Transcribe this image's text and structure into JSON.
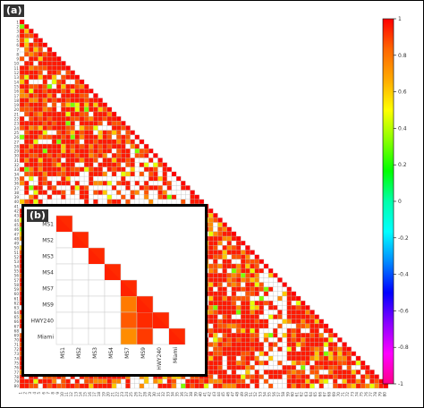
{
  "panels": {
    "a_label": "(a)",
    "b_label": "(b)"
  },
  "chart_data": [
    {
      "type": "heatmap",
      "panel": "(a)",
      "layout": "lower-triangular correlation matrix (diagonal top-left to bottom-right)",
      "categories": [
        "1",
        "2",
        "3",
        "4",
        "5",
        "6",
        "7",
        "8",
        "9",
        "10",
        "11",
        "12",
        "13",
        "14",
        "15",
        "16",
        "17",
        "18",
        "19",
        "20",
        "21",
        "22",
        "23",
        "24",
        "25",
        "26",
        "27",
        "28",
        "29",
        "30",
        "31",
        "32",
        "33",
        "34",
        "35",
        "36",
        "37",
        "38",
        "39",
        "40",
        "41",
        "42",
        "43",
        "44",
        "45",
        "46",
        "47",
        "48",
        "49",
        "50",
        "51",
        "52",
        "53",
        "54",
        "55",
        "56",
        "57",
        "58",
        "59",
        "60",
        "61",
        "62",
        "63",
        "64",
        "65",
        "66",
        "67",
        "68",
        "69",
        "70",
        "71",
        "72",
        "73",
        "74",
        "75",
        "76",
        "77",
        "78",
        "79",
        "80"
      ],
      "note": "cell colours reproduced from the screenshot: predominantly red/orange (strong positive correlation), scattered yellow/green, many white (blank) cells in columns ~25-30 and ~53-57 and rows ~35-40",
      "colorscale": {
        "min": -1,
        "max": 1,
        "ticks": [
          "1",
          "0.8",
          "0.6",
          "0.4",
          "0.2",
          "0",
          "-0.2",
          "-0.4",
          "-0.6",
          "-0.8",
          "-1"
        ],
        "colors": [
          "#ff0000",
          "#ff6600",
          "#ffaa00",
          "#ffff00",
          "#88ff00",
          "#00ff00",
          "#00ffaa",
          "#00ffff",
          "#0088ff",
          "#0000ff",
          "#8800ff",
          "#ff00ff",
          "#ff0088"
        ]
      }
    },
    {
      "type": "heatmap",
      "panel": "(b)",
      "layout": "lower-triangular correlation matrix",
      "categories": [
        "MS1",
        "MS2",
        "MS3",
        "MS4",
        "MS7",
        "MS9",
        "HWY240",
        "Miami"
      ],
      "cells": [
        {
          "row": "MS1",
          "col": "MS1",
          "color": "#ff2a00"
        },
        {
          "row": "MS2",
          "col": "MS2",
          "color": "#ff2a00"
        },
        {
          "row": "MS3",
          "col": "MS3",
          "color": "#ff2a00"
        },
        {
          "row": "MS4",
          "col": "MS4",
          "color": "#ff2a00"
        },
        {
          "row": "MS7",
          "col": "MS7",
          "color": "#ff2a00"
        },
        {
          "row": "MS9",
          "col": "MS7",
          "color": "#ff7a00"
        },
        {
          "row": "MS9",
          "col": "MS9",
          "color": "#ff2a00"
        },
        {
          "row": "HWY240",
          "col": "MS7",
          "color": "#ff5a00"
        },
        {
          "row": "HWY240",
          "col": "MS9",
          "color": "#ff2a00"
        },
        {
          "row": "HWY240",
          "col": "HWY240",
          "color": "#ff2a00"
        },
        {
          "row": "Miami",
          "col": "MS7",
          "color": "#ff8c00"
        },
        {
          "row": "Miami",
          "col": "MS9",
          "color": "#ff3a00"
        },
        {
          "row": "Miami",
          "col": "Miami",
          "color": "#ff2a00"
        }
      ]
    }
  ]
}
